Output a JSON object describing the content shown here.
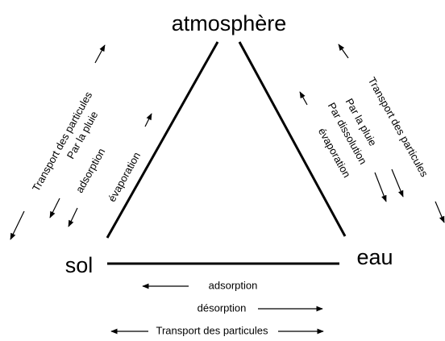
{
  "nodes": [
    {
      "label": "atmosphère"
    },
    {
      "label": "sol"
    },
    {
      "label": "eau"
    }
  ],
  "left_labels": [
    "Transport des particules",
    "Par la pluie",
    "adsorption",
    "évaporation"
  ],
  "right_labels": [
    "Transport des particules",
    "Par la pluie",
    "Par dissolution",
    "évaporation"
  ],
  "bottom_labels": [
    "adsorption",
    "désorption",
    "Transport des particules"
  ]
}
